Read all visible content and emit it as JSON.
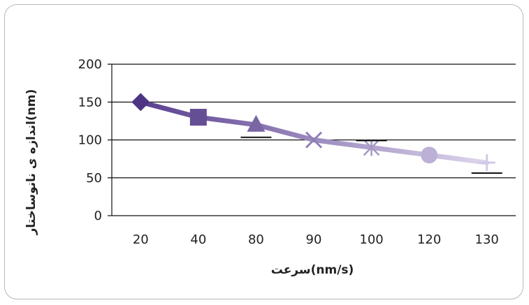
{
  "chart_data": {
    "type": "line",
    "categories": [
      "20",
      "40",
      "80",
      "90",
      "100",
      "120",
      "130"
    ],
    "values": [
      150,
      130,
      120,
      100,
      90,
      80,
      70
    ],
    "markers": [
      "diamond",
      "square",
      "triangle",
      "x",
      "star",
      "circle",
      "plus"
    ],
    "xlabel": "سرعت(nm/s)",
    "ylabel": "اندازه ی نانوساختار(nm)",
    "ylim": [
      0,
      200
    ],
    "yticks": [
      0,
      50,
      100,
      150,
      200
    ],
    "grid": true,
    "legend": "none",
    "colors": {
      "start": "#5b3f90",
      "end": "#ddd6ec"
    }
  }
}
